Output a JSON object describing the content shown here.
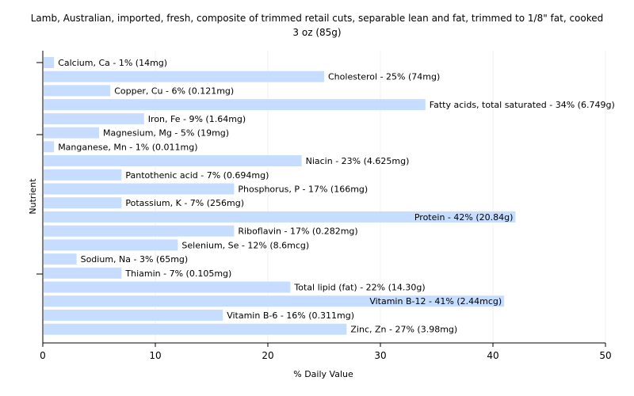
{
  "chart_data": {
    "type": "bar",
    "orientation": "horizontal",
    "title_lines": [
      "Lamb, Australian, imported, fresh, composite of trimmed retail cuts, separable lean and fat, trimmed to 1/8\" fat, cooked",
      "3 oz (85g)"
    ],
    "xlabel": "% Daily Value",
    "ylabel": "Nutrient",
    "xlim": [
      0,
      50
    ],
    "xticks": [
      0,
      10,
      20,
      30,
      40,
      50
    ],
    "grid": true,
    "bar_color": "#c6ddff",
    "categories": [
      "Calcium, Ca",
      "Cholesterol",
      "Copper, Cu",
      "Fatty acids, total saturated",
      "Iron, Fe",
      "Magnesium, Mg",
      "Manganese, Mn",
      "Niacin",
      "Pantothenic acid",
      "Phosphorus, P",
      "Potassium, K",
      "Protein",
      "Riboflavin",
      "Selenium, Se",
      "Sodium, Na",
      "Thiamin",
      "Total lipid (fat)",
      "Vitamin B-12",
      "Vitamin B-6",
      "Zinc, Zn"
    ],
    "values": [
      1,
      25,
      6,
      34,
      9,
      5,
      1,
      23,
      7,
      17,
      7,
      42,
      17,
      12,
      3,
      7,
      22,
      41,
      16,
      27
    ],
    "labels": [
      "Calcium, Ca - 1% (14mg)",
      "Cholesterol - 25% (74mg)",
      "Copper, Cu - 6% (0.121mg)",
      "Fatty acids, total saturated - 34% (6.749g)",
      "Iron, Fe - 9% (1.64mg)",
      "Magnesium, Mg - 5% (19mg)",
      "Manganese, Mn - 1% (0.011mg)",
      "Niacin - 23% (4.625mg)",
      "Pantothenic acid - 7% (0.694mg)",
      "Phosphorus, P - 17% (166mg)",
      "Potassium, K - 7% (256mg)",
      "Protein - 42% (20.84g)",
      "Riboflavin - 17% (0.282mg)",
      "Selenium, Se - 12% (8.6mcg)",
      "Sodium, Na - 3% (65mg)",
      "Thiamin - 7% (0.105mg)",
      "Total lipid (fat) - 22% (14.30g)",
      "Vitamin B-12 - 41% (2.44mcg)",
      "Vitamin B-6 - 16% (0.311mg)",
      "Zinc, Zn - 27% (3.98mg)"
    ]
  }
}
